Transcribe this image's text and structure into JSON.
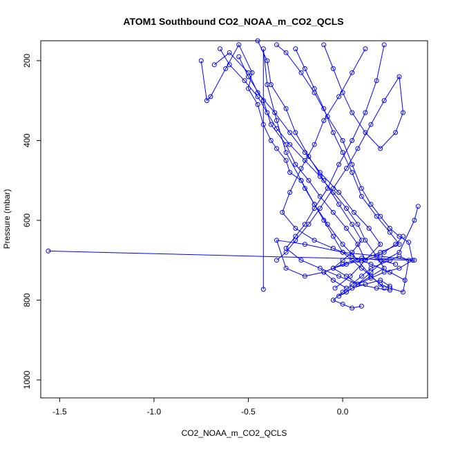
{
  "chart_data": {
    "type": "scatter",
    "title": "ATOM1 Southbound CO2_NOAA_m_CO2_QCLS",
    "xlabel": "CO2_NOAA_m_CO2_QCLS",
    "ylabel": "Pressure (mbar)",
    "xlim": [
      -1.6,
      0.45
    ],
    "ylim": [
      1045,
      150
    ],
    "y_reversed": true,
    "x_ticks": [
      -1.5,
      -1.0,
      -0.5,
      0.0
    ],
    "x_tick_labels": [
      "-1.5",
      "-1.0",
      "-0.5",
      "0.0"
    ],
    "y_ticks": [
      200,
      400,
      600,
      800,
      1000
    ],
    "y_tick_labels": [
      "200",
      "400",
      "600",
      "800",
      "1000"
    ],
    "grid": false,
    "legend": "none",
    "point_style": "open-circle",
    "series_color": "#0000ff",
    "series": [
      {
        "x": [
          -0.75,
          -0.72,
          -0.7,
          -0.62,
          -0.55,
          -0.48,
          -0.5,
          -0.45,
          -0.42,
          -0.38,
          -0.35,
          -0.3,
          -0.28,
          -0.22,
          -0.2,
          -0.15,
          -0.1,
          -0.05,
          0.0,
          0.05,
          0.1,
          0.15,
          0.2,
          0.25,
          0.32,
          0.35,
          0.3,
          0.25,
          0.15,
          0.1,
          0.05,
          0.0,
          -0.05,
          0.0,
          0.05,
          0.1
        ],
        "y": [
          200,
          300,
          290,
          220,
          160,
          230,
          270,
          310,
          360,
          400,
          420,
          450,
          480,
          500,
          520,
          560,
          600,
          640,
          680,
          700,
          720,
          740,
          760,
          770,
          780,
          700,
          690,
          700,
          720,
          740,
          760,
          780,
          800,
          810,
          820,
          815
        ]
      },
      {
        "x": [
          -0.65,
          -0.6,
          -0.52,
          -0.45,
          -0.4,
          -0.35,
          -0.28,
          -0.2,
          -0.12,
          -0.05,
          0.02,
          0.08,
          0.12,
          0.18,
          0.22,
          0.15,
          0.08,
          0.02,
          -0.02,
          0.05,
          0.12,
          0.2,
          0.25
        ],
        "y": [
          170,
          210,
          250,
          290,
          330,
          370,
          410,
          450,
          490,
          530,
          570,
          610,
          650,
          690,
          720,
          740,
          760,
          780,
          790,
          770,
          760,
          750,
          765
        ]
      },
      {
        "x": [
          -0.45,
          -0.4,
          -0.38,
          -0.3,
          -0.25,
          -0.18,
          -0.1,
          -0.02,
          0.05,
          0.1,
          0.05,
          0.0,
          -0.05,
          0.02,
          0.08,
          0.15,
          0.22,
          0.3,
          0.38,
          0.4
        ],
        "y": [
          150,
          200,
          260,
          320,
          380,
          440,
          500,
          560,
          610,
          650,
          680,
          700,
          720,
          740,
          760,
          730,
          700,
          680,
          600,
          565
        ]
      },
      {
        "x": [
          -0.35,
          -0.3,
          -0.22,
          -0.15,
          -0.08,
          0.0,
          0.05,
          0.1,
          0.15,
          0.2,
          0.25,
          0.3,
          0.35,
          0.37,
          0.3,
          0.22,
          0.15,
          0.08
        ],
        "y": [
          160,
          180,
          230,
          280,
          340,
          400,
          460,
          520,
          560,
          590,
          620,
          640,
          655,
          700,
          720,
          730,
          745,
          760
        ]
      },
      {
        "x": [
          -0.25,
          -0.2,
          -0.15,
          -0.1,
          -0.05,
          0.0,
          0.05,
          0.1,
          0.18,
          0.25,
          0.3,
          0.2,
          0.1,
          0.02,
          -0.05,
          -0.1,
          -0.05,
          0.02
        ],
        "y": [
          170,
          220,
          270,
          320,
          380,
          430,
          480,
          540,
          590,
          630,
          660,
          680,
          700,
          710,
          720,
          730,
          750,
          770
        ]
      },
      {
        "x": [
          -0.1,
          -0.05,
          0.0,
          0.05,
          0.12,
          0.2,
          0.28,
          0.32,
          0.3,
          0.22,
          0.15,
          0.08,
          0.02,
          -0.05,
          -0.12,
          -0.18,
          -0.25,
          -0.3,
          -0.35
        ],
        "y": [
          160,
          220,
          280,
          330,
          380,
          420,
          380,
          330,
          240,
          300,
          360,
          420,
          470,
          520,
          570,
          610,
          650,
          680,
          700
        ]
      },
      {
        "x": [
          -1.56,
          0.38,
          0.2,
          0.0,
          -0.2,
          -0.35,
          -0.3,
          -0.2,
          -0.1,
          0.0,
          0.1,
          0.2,
          0.28
        ],
        "y": [
          677,
          700,
          690,
          680,
          660,
          650,
          720,
          740,
          730,
          710,
          695,
          700,
          710
        ]
      },
      {
        "x": [
          -0.42,
          -0.42,
          -0.4,
          -0.35,
          -0.3,
          -0.22,
          -0.15,
          -0.08,
          0.0,
          0.08,
          0.15,
          0.22
        ],
        "y": [
          773,
          170,
          260,
          350,
          430,
          500,
          560,
          610,
          660,
          700,
          740,
          770
        ]
      },
      {
        "x": [
          -0.55,
          -0.5,
          -0.42,
          -0.38,
          -0.3,
          -0.25,
          -0.18,
          -0.12,
          -0.05,
          0.02,
          0.08,
          0.12,
          0.18,
          0.22,
          0.28,
          0.32
        ],
        "y": [
          190,
          240,
          300,
          360,
          410,
          460,
          500,
          540,
          580,
          620,
          660,
          700,
          690,
          680,
          660,
          640
        ]
      },
      {
        "x": [
          0.12,
          0.05,
          -0.02,
          -0.1,
          -0.15,
          -0.22,
          -0.28,
          -0.32,
          -0.25,
          -0.15,
          -0.05,
          0.05,
          0.15,
          0.25,
          0.33
        ],
        "y": [
          170,
          230,
          290,
          350,
          410,
          470,
          530,
          580,
          620,
          650,
          670,
          690,
          710,
          730,
          750
        ]
      },
      {
        "x": [
          0.22,
          0.18,
          0.12,
          0.05,
          -0.02,
          -0.08,
          -0.15,
          -0.2,
          -0.25,
          -0.3,
          -0.22,
          -0.12,
          -0.02,
          0.08,
          0.18,
          0.25
        ],
        "y": [
          160,
          250,
          330,
          400,
          460,
          520,
          570,
          610,
          640,
          670,
          700,
          720,
          740,
          760,
          770,
          775
        ]
      },
      {
        "x": [
          -0.68,
          -0.6,
          -0.5,
          -0.45,
          -0.36,
          -0.28,
          -0.2,
          -0.12,
          -0.02,
          0.06,
          0.14,
          0.2,
          0.12,
          0.04,
          -0.04
        ],
        "y": [
          210,
          180,
          230,
          280,
          330,
          380,
          430,
          480,
          530,
          580,
          620,
          660,
          700,
          740,
          770
        ]
      }
    ]
  }
}
